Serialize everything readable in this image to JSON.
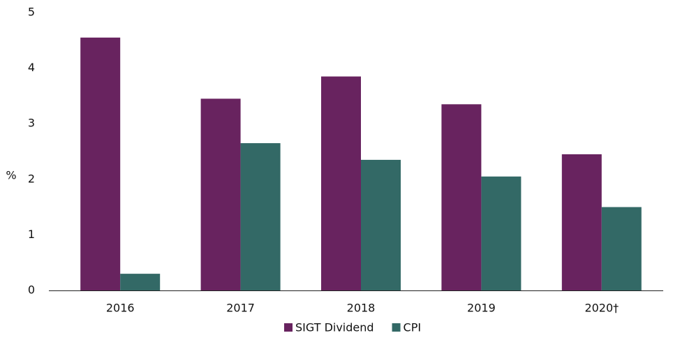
{
  "chart_data": {
    "type": "bar",
    "y_label": "%",
    "categories": [
      "2016",
      "2017",
      "2018",
      "2019",
      "2020†"
    ],
    "series": [
      {
        "name": "SIGT Dividend",
        "color": "#68235f",
        "values": [
          4.55,
          3.45,
          3.85,
          3.35,
          2.45
        ]
      },
      {
        "name": "CPI",
        "color": "#336966",
        "values": [
          0.3,
          2.65,
          2.35,
          2.05,
          1.5
        ]
      }
    ],
    "ylim": [
      0,
      5
    ],
    "yticks": [
      0,
      1,
      2,
      3,
      4,
      5
    ],
    "grid": false,
    "legend": "bottom"
  }
}
